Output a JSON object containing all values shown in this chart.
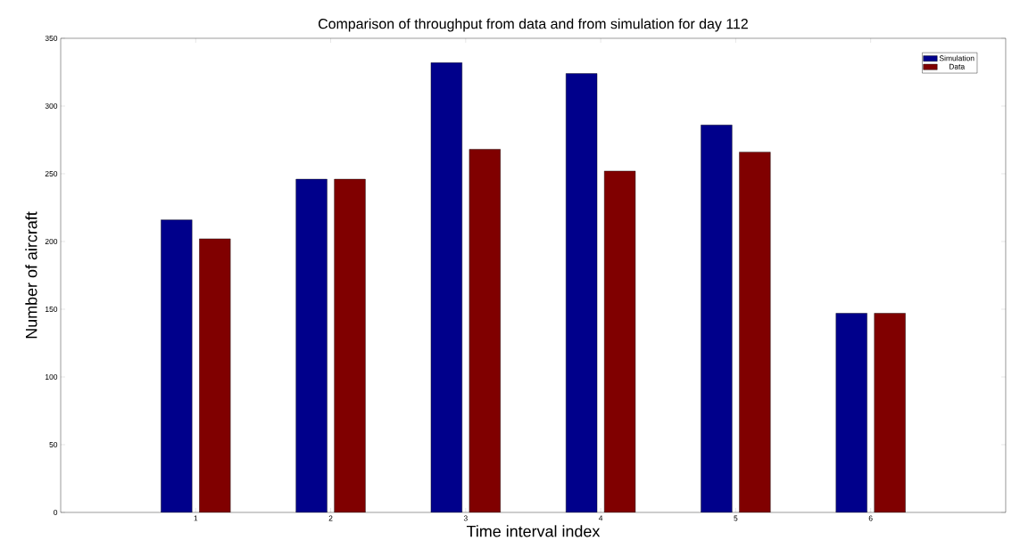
{
  "chart_data": {
    "type": "bar",
    "title": "Comparison of throughput from data and from simulation for day 112",
    "xlabel": "Time interval index",
    "ylabel": "Number of aircraft",
    "categories": [
      "1",
      "2",
      "3",
      "4",
      "5",
      "6"
    ],
    "series": [
      {
        "name": "Simulation",
        "color": "#00008b",
        "values": [
          216,
          246,
          332,
          324,
          286,
          147
        ]
      },
      {
        "name": "Data",
        "color": "#800000",
        "values": [
          202,
          246,
          268,
          252,
          266,
          147
        ]
      }
    ],
    "ylim": [
      0,
      350
    ],
    "yticks": [
      0,
      50,
      100,
      150,
      200,
      250,
      300,
      350
    ],
    "legend": "top right"
  }
}
